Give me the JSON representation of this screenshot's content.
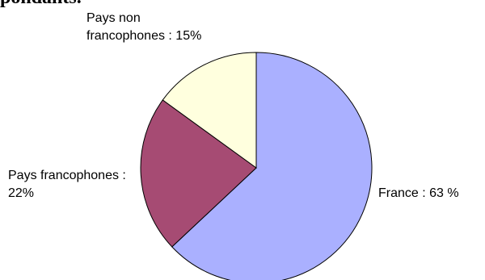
{
  "page_heading_fragment": "pondants.",
  "chart_data": {
    "type": "pie",
    "title": "",
    "start": "top",
    "direction": "clockwise",
    "slices": [
      {
        "label_lines": [
          "France : 63 %"
        ],
        "value": 63,
        "color": "#aab0ff"
      },
      {
        "label_lines": [
          "Pays francophones :",
          "22%"
        ],
        "value": 22,
        "color": "#a64b73"
      },
      {
        "label_lines": [
          "Pays non",
          "francophones : 15%"
        ],
        "value": 15,
        "color": "#ffffde"
      }
    ]
  }
}
